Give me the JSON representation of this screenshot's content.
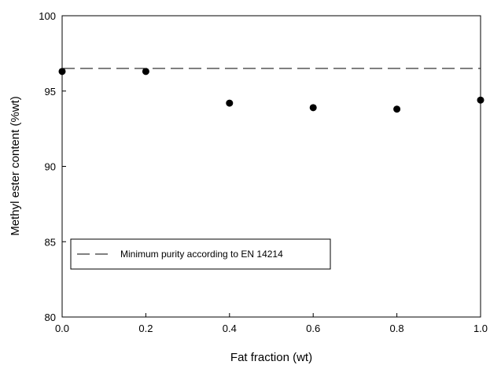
{
  "chart_data": {
    "type": "scatter",
    "xlabel": "Fat fraction (wt)",
    "ylabel": "Methyl ester content (%wt)",
    "xlim": [
      0.0,
      1.0
    ],
    "ylim": [
      80,
      100
    ],
    "x_ticks": [
      "0.0",
      "0.2",
      "0.4",
      "0.6",
      "0.8",
      "1.0"
    ],
    "y_ticks": [
      "80",
      "85",
      "90",
      "95",
      "100"
    ],
    "series": [
      {
        "x": [
          0.0,
          0.2,
          0.4,
          0.6,
          0.8,
          1.0
        ],
        "values": [
          96.3,
          96.3,
          94.2,
          93.9,
          93.8,
          94.4
        ],
        "marker": "circle",
        "color": "#000000"
      }
    ],
    "reference_lines": [
      {
        "y": 96.5,
        "style": "dashed",
        "label": "Minimum purity according to EN 14214"
      }
    ],
    "legend": {
      "placement": "lower-left",
      "entries": [
        "Minimum purity according to EN 14214"
      ]
    },
    "grid": false
  }
}
